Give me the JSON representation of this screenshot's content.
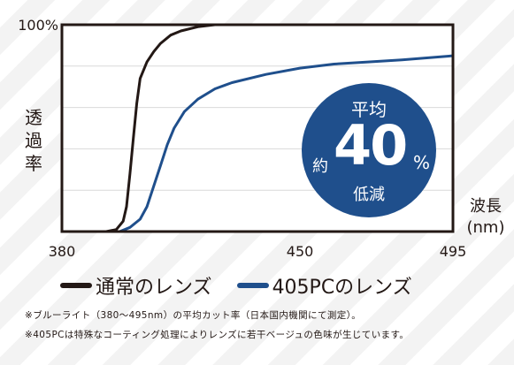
{
  "chart_data": {
    "type": "line",
    "xlabel": "波長",
    "xunit": "(nm)",
    "ylabel": "透過率",
    "y_tick_label": "100%",
    "xlim": [
      380,
      495
    ],
    "ylim": [
      0,
      100
    ],
    "x_ticks": [
      {
        "value": 380,
        "label": "380"
      },
      {
        "value": 450,
        "label": "450"
      },
      {
        "value": 495,
        "label": "495"
      }
    ],
    "grid": "horizontal",
    "series": [
      {
        "name": "通常のレンズ",
        "color": "#231815",
        "points": [
          [
            380,
            0
          ],
          [
            393,
            0
          ],
          [
            396,
            1
          ],
          [
            398,
            5
          ],
          [
            399,
            12
          ],
          [
            400,
            28
          ],
          [
            401,
            45
          ],
          [
            402,
            62
          ],
          [
            403,
            74
          ],
          [
            405,
            82
          ],
          [
            407,
            87
          ],
          [
            409,
            91
          ],
          [
            412,
            95
          ],
          [
            415,
            97
          ],
          [
            420,
            99
          ],
          [
            425,
            100
          ],
          [
            495,
            100
          ]
        ]
      },
      {
        "name": "405PCのレンズ",
        "color": "#1f4f8c",
        "points": [
          [
            380,
            0
          ],
          [
            397,
            0
          ],
          [
            400,
            2
          ],
          [
            403,
            6
          ],
          [
            405,
            12
          ],
          [
            407,
            22
          ],
          [
            409,
            32
          ],
          [
            411,
            42
          ],
          [
            413,
            50
          ],
          [
            416,
            58
          ],
          [
            420,
            64
          ],
          [
            425,
            69
          ],
          [
            430,
            72
          ],
          [
            440,
            76
          ],
          [
            450,
            79
          ],
          [
            460,
            81
          ],
          [
            470,
            82
          ],
          [
            480,
            83
          ],
          [
            495,
            85
          ]
        ]
      }
    ]
  },
  "badge": {
    "top": "平均",
    "prefix": "約",
    "value": "40",
    "unit": "%",
    "bottom": "低減",
    "color": "#1f4f8c"
  },
  "notes": [
    "※ブルーライト（380～495nm）の平均カット率（日本国内機関にて測定）。",
    "※405PCは特殊なコーティング処理によりレンズに若干ベージュの色味が生じています。"
  ]
}
